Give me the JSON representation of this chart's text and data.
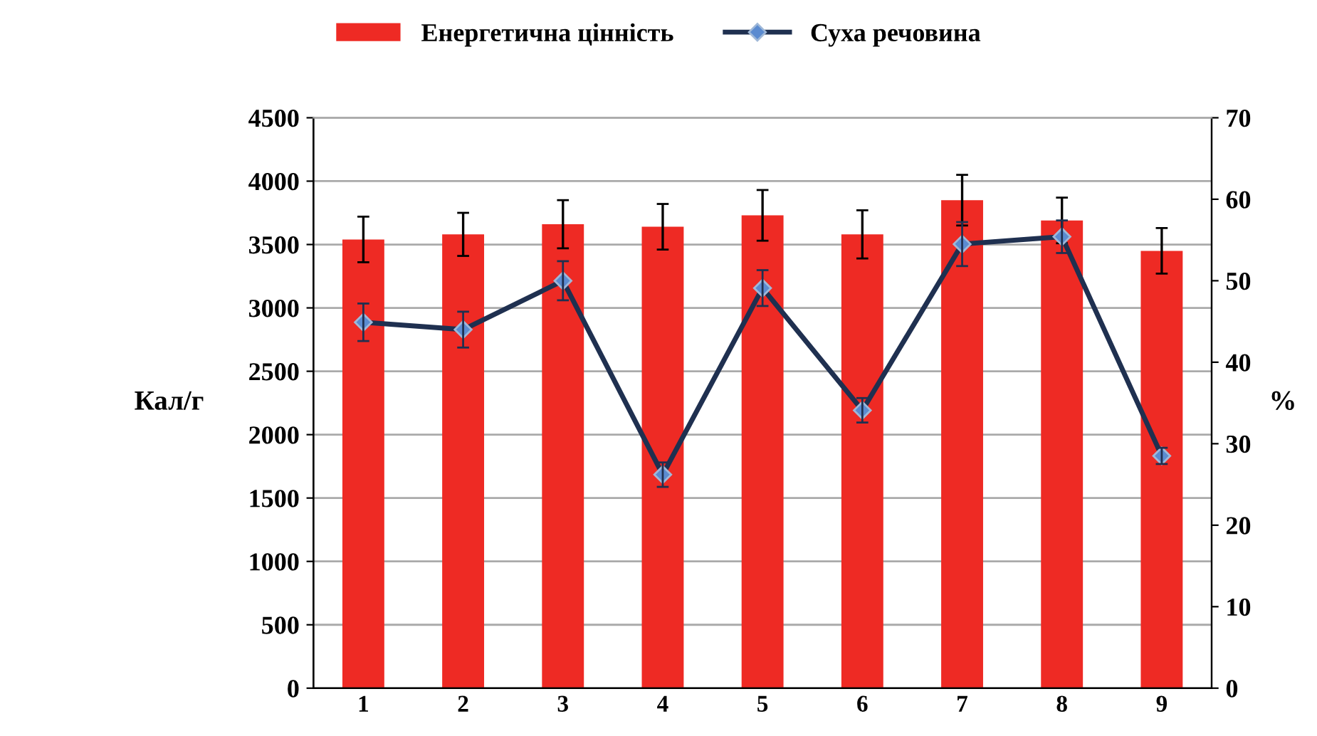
{
  "chart_data": {
    "type": "bar",
    "categories": [
      "1",
      "2",
      "3",
      "4",
      "5",
      "6",
      "7",
      "8",
      "9"
    ],
    "series": [
      {
        "name": "Енергетична цінність",
        "color": "#ee2a24",
        "values": [
          3540,
          3580,
          3660,
          3640,
          3730,
          3580,
          3850,
          3690,
          3450
        ],
        "errors": [
          180,
          170,
          190,
          180,
          200,
          190,
          200,
          180,
          180
        ]
      },
      {
        "name": "Суха речовина",
        "type": "line",
        "axis": "y2",
        "color": "#1f3050",
        "marker": "diamond",
        "values": [
          44.9,
          44.0,
          50.0,
          26.2,
          49.1,
          34.1,
          54.5,
          55.4,
          28.5
        ],
        "errors": [
          2.3,
          2.2,
          2.4,
          1.5,
          2.2,
          1.5,
          2.7,
          2.0,
          1.0
        ]
      }
    ],
    "ylabel": "Кал/г",
    "y2label": "%",
    "ylim": [
      0,
      4500
    ],
    "yticks": [
      0,
      500,
      1000,
      1500,
      2000,
      2500,
      3000,
      3500,
      4000,
      4500
    ],
    "y2lim": [
      0,
      70
    ],
    "y2ticks": [
      0,
      10,
      20,
      30,
      40,
      50,
      60,
      70
    ],
    "grid": "y",
    "legend": "top"
  }
}
